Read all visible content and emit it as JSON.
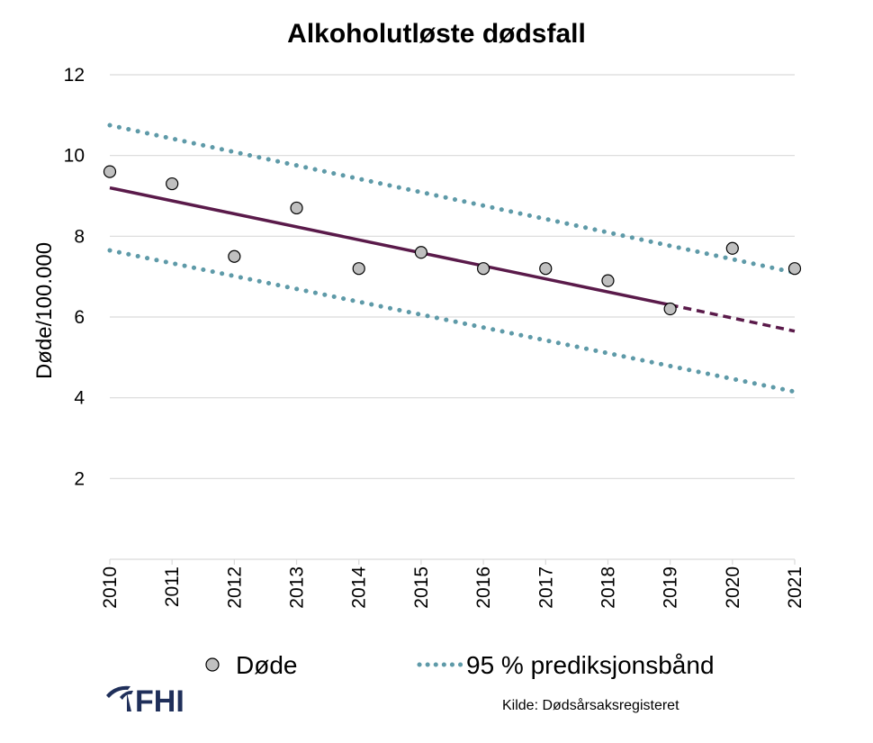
{
  "chart_data": {
    "type": "scatter",
    "title": "Alkoholutløste dødsfall",
    "xlabel": "",
    "ylabel": "Døde/100.000",
    "x": [
      2010,
      2011,
      2012,
      2013,
      2014,
      2015,
      2016,
      2017,
      2018,
      2019,
      2020,
      2021
    ],
    "xlim": [
      2010,
      2021
    ],
    "ylim": [
      0,
      12
    ],
    "yticks": [
      2,
      4,
      6,
      8,
      10,
      12
    ],
    "grid": true,
    "legend_position": "bottom",
    "series": [
      {
        "name": "Døde",
        "kind": "points",
        "x": [
          2010,
          2011,
          2012,
          2013,
          2014,
          2015,
          2016,
          2017,
          2018,
          2019,
          2020,
          2021
        ],
        "values": [
          9.6,
          9.3,
          7.5,
          8.7,
          7.2,
          7.6,
          7.2,
          7.2,
          6.9,
          6.2,
          7.7,
          7.2
        ],
        "color": "#c0c0c0"
      },
      {
        "kind": "trend",
        "x": [
          2010,
          2019
        ],
        "values": [
          9.2,
          6.3
        ],
        "color": "#5a1a4a"
      },
      {
        "kind": "trend-projection",
        "x": [
          2019,
          2021
        ],
        "values": [
          6.3,
          5.65
        ],
        "color": "#5a1a4a"
      },
      {
        "name": "95 % prediksjonsbånd",
        "kind": "band-upper",
        "x": [
          2010,
          2021
        ],
        "values": [
          10.75,
          7.1
        ],
        "color": "#5e9aa8"
      },
      {
        "kind": "band-lower",
        "x": [
          2010,
          2021
        ],
        "values": [
          7.65,
          4.15
        ],
        "color": "#5e9aa8"
      }
    ]
  },
  "legend": {
    "points_label": "Døde",
    "band_label": "95 % prediksjonsbånd"
  },
  "footer": {
    "logo_text": "FHI",
    "source": "Kilde: Dødsårsaksregisteret"
  },
  "colors": {
    "trend": "#5a1a4a",
    "band": "#5e9aa8",
    "point_fill": "#c0c0c0",
    "grid": "#d9d9d9",
    "logo": "#1f2f5a"
  }
}
